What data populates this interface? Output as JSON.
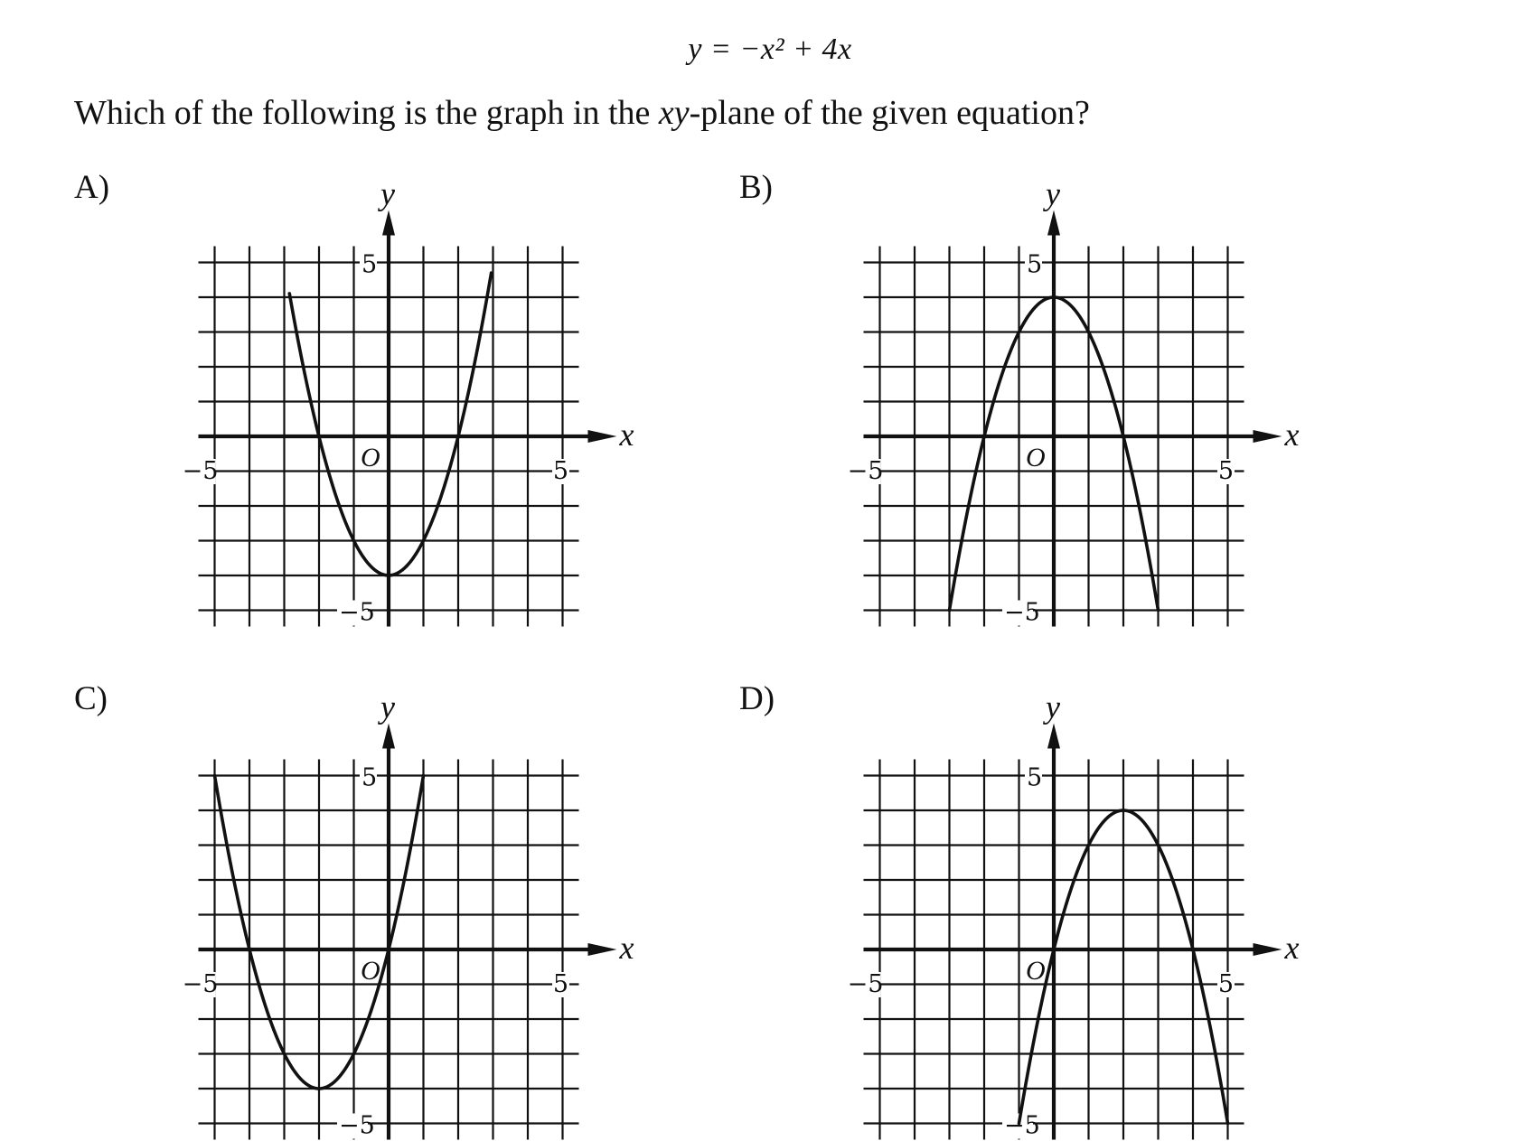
{
  "equation": {
    "lhs": "y",
    "rhs": "= −x² + 4x"
  },
  "question": {
    "before": "Which of the following is the graph in the ",
    "var": "xy",
    "after": "-plane of the given equation?"
  },
  "chart_data": [
    {
      "type": "line",
      "option": "A)",
      "xlabel": "x",
      "ylabel": "y",
      "origin_label": "O",
      "xlim": [
        -5,
        5
      ],
      "ylim": [
        -5,
        5
      ],
      "grid": true,
      "tick_labels": {
        "x_min": "−5",
        "x_max": "5",
        "y_max": "5",
        "y_min": "−5"
      },
      "series": [
        {
          "equation": "y = x^2 - 4",
          "x": [
            -2.85,
            -2,
            -1,
            0,
            1,
            2,
            2.95
          ],
          "y": [
            4.1,
            0,
            -3,
            -4,
            -3,
            0,
            4.7
          ]
        }
      ]
    },
    {
      "type": "line",
      "option": "B)",
      "xlabel": "x",
      "ylabel": "y",
      "origin_label": "O",
      "xlim": [
        -5,
        5
      ],
      "ylim": [
        -5,
        5
      ],
      "grid": true,
      "tick_labels": {
        "x_min": "−5",
        "x_max": "5",
        "y_max": "5",
        "y_min": "−5"
      },
      "series": [
        {
          "equation": "y = 4 - x^2",
          "x": [
            -3,
            -2,
            -1,
            0,
            1,
            2,
            3
          ],
          "y": [
            -5,
            0,
            3,
            4,
            3,
            0,
            -5
          ]
        }
      ]
    },
    {
      "type": "line",
      "option": "C)",
      "xlabel": "x",
      "ylabel": "y",
      "origin_label": "O",
      "xlim": [
        -5,
        5
      ],
      "ylim": [
        -5,
        5
      ],
      "grid": true,
      "tick_labels": {
        "x_min": "−5",
        "x_max": "5",
        "y_max": "5",
        "y_min": "−5"
      },
      "series": [
        {
          "equation": "y = x^2 + 4x",
          "x": [
            -5,
            -4,
            -3,
            -2,
            -1,
            0,
            1
          ],
          "y": [
            5,
            0,
            -3,
            -4,
            -3,
            0,
            5
          ]
        }
      ]
    },
    {
      "type": "line",
      "option": "D)",
      "xlabel": "x",
      "ylabel": "y",
      "origin_label": "O",
      "xlim": [
        -5,
        5
      ],
      "ylim": [
        -5,
        5
      ],
      "grid": true,
      "tick_labels": {
        "x_min": "−5",
        "x_max": "5",
        "y_max": "5",
        "y_min": "−5"
      },
      "series": [
        {
          "equation": "y = -x^2 + 4x",
          "x": [
            -1,
            0,
            1,
            2,
            3,
            4,
            5
          ],
          "y": [
            -5,
            0,
            3,
            4,
            3,
            0,
            -5
          ]
        }
      ]
    }
  ]
}
